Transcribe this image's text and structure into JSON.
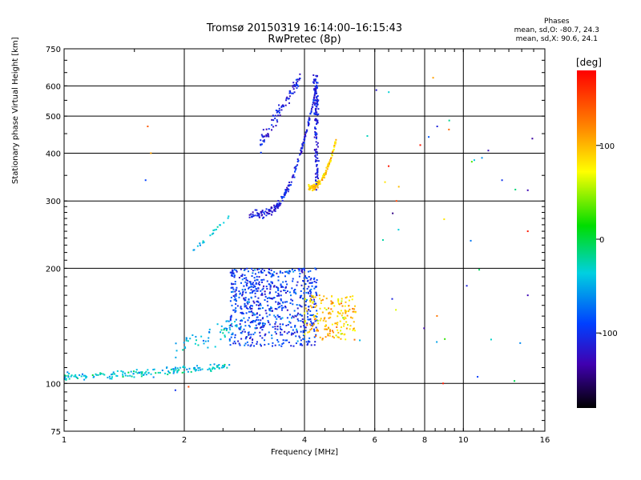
{
  "header": {
    "title_line1": "Tromsø 20150319 16:14:00–16:15:43",
    "title_line2": "RwPretec (8p)"
  },
  "phases": {
    "heading": "Phases",
    "line_o": "mean, sd,O: -80.7, 24.3",
    "line_x": "mean, sd,X:  90.6, 24.1"
  },
  "colorbar": {
    "unit": "[deg]",
    "ticks": [
      {
        "value": 100,
        "label": "100"
      },
      {
        "value": 0,
        "label": "0"
      },
      {
        "value": -100,
        "label": "-100"
      }
    ],
    "range": [
      -180,
      180
    ]
  },
  "chart_data": {
    "type": "scatter",
    "title": "Tromsø 20150319 16:14:00–16:15:43",
    "subtitle": "RwPretec (8p)",
    "xlabel": "Frequency [MHz]",
    "ylabel": "Stationary phase Virtual Height [km]",
    "x_scale": "log",
    "y_scale": "log",
    "xlim": [
      1,
      16
    ],
    "ylim": [
      75,
      750
    ],
    "x_ticks": [
      1,
      2,
      4,
      6,
      8,
      10,
      16
    ],
    "x_tick_labels": [
      "1",
      "2",
      "4",
      "6",
      "8",
      "10",
      "16"
    ],
    "y_ticks": [
      75,
      100,
      200,
      300,
      400,
      500,
      600,
      750
    ],
    "y_tick_labels": [
      "75",
      "100",
      "200",
      "300",
      "400",
      "500",
      "600",
      "750"
    ],
    "grid": true,
    "color_meaning": "phase [deg]",
    "traces": [
      {
        "name": "lower trace",
        "f_range": [
          1.0,
          2.6
        ],
        "h_range": [
          105,
          113
        ],
        "phase": -40
      },
      {
        "name": "F-region trace",
        "f_range": [
          2.9,
          4.4
        ],
        "h_range": [
          275,
          640
        ],
        "phase": -110
      },
      {
        "name": "X-mode trace",
        "f_range": [
          4.05,
          4.8
        ],
        "h_range": [
          330,
          420
        ],
        "phase": 90
      },
      {
        "name": "E/F1 cloud",
        "f_range": [
          2.4,
          4.2
        ],
        "h_range": [
          125,
          200
        ],
        "phase": -95
      },
      {
        "name": "yellow cloud",
        "f_range": [
          4.0,
          5.4
        ],
        "h_range": [
          140,
          165
        ],
        "phase": 100
      }
    ],
    "outliers": [
      {
        "f": 1.62,
        "h": 470,
        "phase": 140
      },
      {
        "f": 1.65,
        "h": 400,
        "phase": 110
      },
      {
        "f": 1.6,
        "h": 340,
        "phase": -90
      },
      {
        "f": 2.05,
        "h": 98,
        "phase": 150
      },
      {
        "f": 1.9,
        "h": 96,
        "phase": -100
      },
      {
        "f": 6.5,
        "h": 370,
        "phase": 170
      },
      {
        "f": 6.8,
        "h": 300,
        "phase": 150
      },
      {
        "f": 7.8,
        "h": 420,
        "phase": 170
      },
      {
        "f": 8.6,
        "h": 470,
        "phase": -110
      },
      {
        "f": 8.4,
        "h": 630,
        "phase": 110
      },
      {
        "f": 10.5,
        "h": 380,
        "phase": 30
      },
      {
        "f": 12.5,
        "h": 340,
        "phase": -100
      },
      {
        "f": 14.5,
        "h": 320,
        "phase": -130
      },
      {
        "f": 14.5,
        "h": 250,
        "phase": 170
      },
      {
        "f": 8.9,
        "h": 100,
        "phase": 170
      },
      {
        "f": 14.5,
        "h": 170,
        "phase": -130
      },
      {
        "f": 10.2,
        "h": 180,
        "phase": -110
      }
    ]
  }
}
